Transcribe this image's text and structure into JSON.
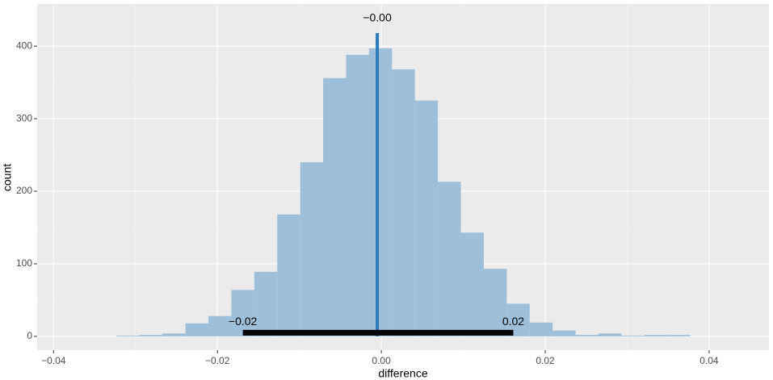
{
  "chart_data": {
    "type": "histogram",
    "x_label": "difference",
    "y_label": "count",
    "bins": [
      -0.0323,
      -0.0295,
      -0.0267,
      -0.0239,
      -0.0211,
      -0.0183,
      -0.0155,
      -0.0127,
      -0.0099,
      -0.0071,
      -0.0043,
      -0.0015,
      0.0013,
      0.0041,
      0.0069,
      0.0097,
      0.0125,
      0.0153,
      0.0181,
      0.0209,
      0.0237,
      0.0265,
      0.0293,
      0.0321,
      0.0349,
      0.0377
    ],
    "counts": [
      1,
      2,
      4,
      18,
      28,
      64,
      89,
      168,
      240,
      356,
      388,
      397,
      368,
      325,
      213,
      143,
      93,
      45,
      19,
      8,
      2,
      4,
      1,
      2,
      2
    ],
    "color": "#9ebfd9",
    "xlim": [
      -0.042,
      0.0473
    ],
    "ylim": [
      -19,
      458
    ],
    "xticks": [
      {
        "value": -0.04,
        "label": "−0.04"
      },
      {
        "value": -0.02,
        "label": "−0.02"
      },
      {
        "value": 0,
        "label": "0.00"
      },
      {
        "value": 0.02,
        "label": "0.02"
      },
      {
        "value": 0.04,
        "label": "0.04"
      }
    ],
    "yticks": [
      0,
      100,
      200,
      300,
      400
    ],
    "minor_xticks": [
      -0.03,
      -0.01,
      0.01,
      0.03
    ],
    "minor_yticks": [
      50,
      150,
      250,
      350
    ],
    "grid": true,
    "point_estimate": {
      "value": -0.0005,
      "label": "−0.00",
      "height": 418,
      "color": "#2b7bba"
    },
    "interval": {
      "low": -0.0169,
      "high": 0.0161,
      "low_label": "−0.02",
      "high_label": "0.02",
      "y": 5,
      "color": "#000000"
    }
  }
}
